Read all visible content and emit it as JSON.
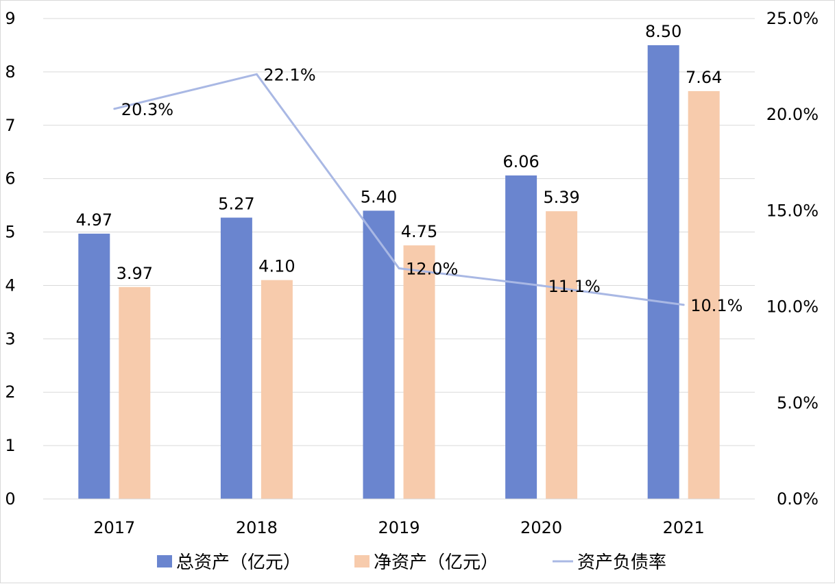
{
  "chart_data": {
    "type": "bar",
    "categories": [
      "2017",
      "2018",
      "2019",
      "2020",
      "2021"
    ],
    "series": [
      {
        "name": "总资产（亿元）",
        "type": "bar",
        "axis": "left",
        "color": "#6a85cf",
        "values": [
          4.97,
          5.27,
          5.4,
          6.06,
          8.5
        ],
        "labels": [
          "4.97",
          "5.27",
          "5.40",
          "6.06",
          "8.50"
        ]
      },
      {
        "name": "净资产（亿元）",
        "type": "bar",
        "axis": "left",
        "color": "#f7cbac",
        "values": [
          3.97,
          4.1,
          4.75,
          5.39,
          7.64
        ],
        "labels": [
          "3.97",
          "4.10",
          "4.75",
          "5.39",
          "7.64"
        ]
      },
      {
        "name": "资产负债率",
        "type": "line",
        "axis": "right",
        "color": "#a9b8e4",
        "values": [
          20.3,
          22.1,
          12.0,
          11.1,
          10.1
        ],
        "labels": [
          "20.3%",
          "22.1%",
          "12.0%",
          "11.1%",
          "10.1%"
        ]
      }
    ],
    "y_left": {
      "ylim": [
        0,
        9
      ],
      "ticks": [
        "0",
        "1",
        "2",
        "3",
        "4",
        "5",
        "6",
        "7",
        "8",
        "9"
      ]
    },
    "y_right": {
      "ylim": [
        0,
        25
      ],
      "ticks": [
        "0.0%",
        "5.0%",
        "10.0%",
        "15.0%",
        "20.0%",
        "25.0%"
      ]
    },
    "grid": true,
    "legend": "bottom"
  }
}
